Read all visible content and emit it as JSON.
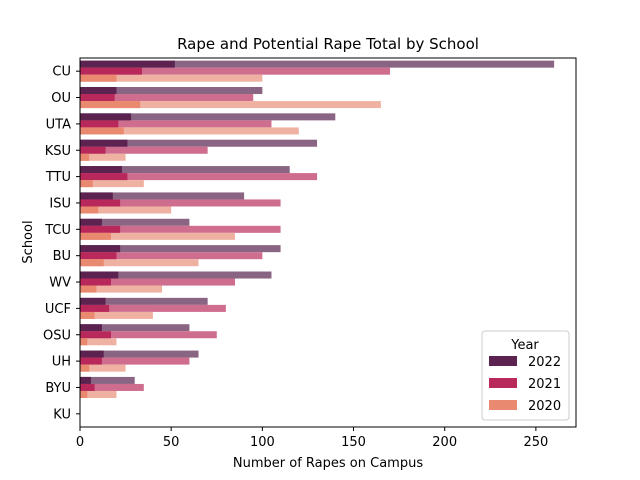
{
  "chart_data": {
    "type": "bar",
    "orientation": "horizontal",
    "title": "Rape and Potential Rape Total by School",
    "xlabel": "Number of Rapes on Campus",
    "ylabel": "School",
    "xlim": [
      0,
      272
    ],
    "xticks": [
      0,
      50,
      100,
      150,
      200,
      250
    ],
    "grid": false,
    "legend_title": "Year",
    "legend_position": "lower-right",
    "categories": [
      "CU",
      "OU",
      "UTA",
      "KSU",
      "TTU",
      "ISU",
      "TCU",
      "BU",
      "WV",
      "UCF",
      "OSU",
      "UH",
      "BYU",
      "KU"
    ],
    "series": [
      {
        "name": "2022",
        "color": "#5c2350",
        "values": [
          52,
          20,
          28,
          26,
          23,
          18,
          12,
          22,
          21,
          14,
          12,
          13,
          6,
          0
        ]
      },
      {
        "name": "2021",
        "color": "#b8285a",
        "values": [
          34,
          19,
          21,
          14,
          26,
          22,
          22,
          20,
          17,
          16,
          17,
          12,
          8,
          0
        ]
      },
      {
        "name": "2020",
        "color": "#e9896f",
        "values": [
          20,
          33,
          24,
          5,
          7,
          10,
          17,
          13,
          9,
          8,
          4,
          5,
          4,
          0
        ]
      }
    ],
    "totals": {
      "name": "Total",
      "colors": [
        "#8a6483",
        "#cf6d8f",
        "#efb2a2"
      ],
      "values": [
        [
          260,
          100,
          140,
          130,
          115,
          90,
          60,
          110,
          105,
          70,
          60,
          65,
          30,
          0
        ],
        [
          170,
          95,
          105,
          70,
          130,
          110,
          110,
          100,
          85,
          80,
          75,
          60,
          35,
          0
        ],
        [
          100,
          165,
          120,
          25,
          35,
          50,
          85,
          65,
          45,
          40,
          20,
          25,
          20,
          0
        ]
      ]
    }
  }
}
